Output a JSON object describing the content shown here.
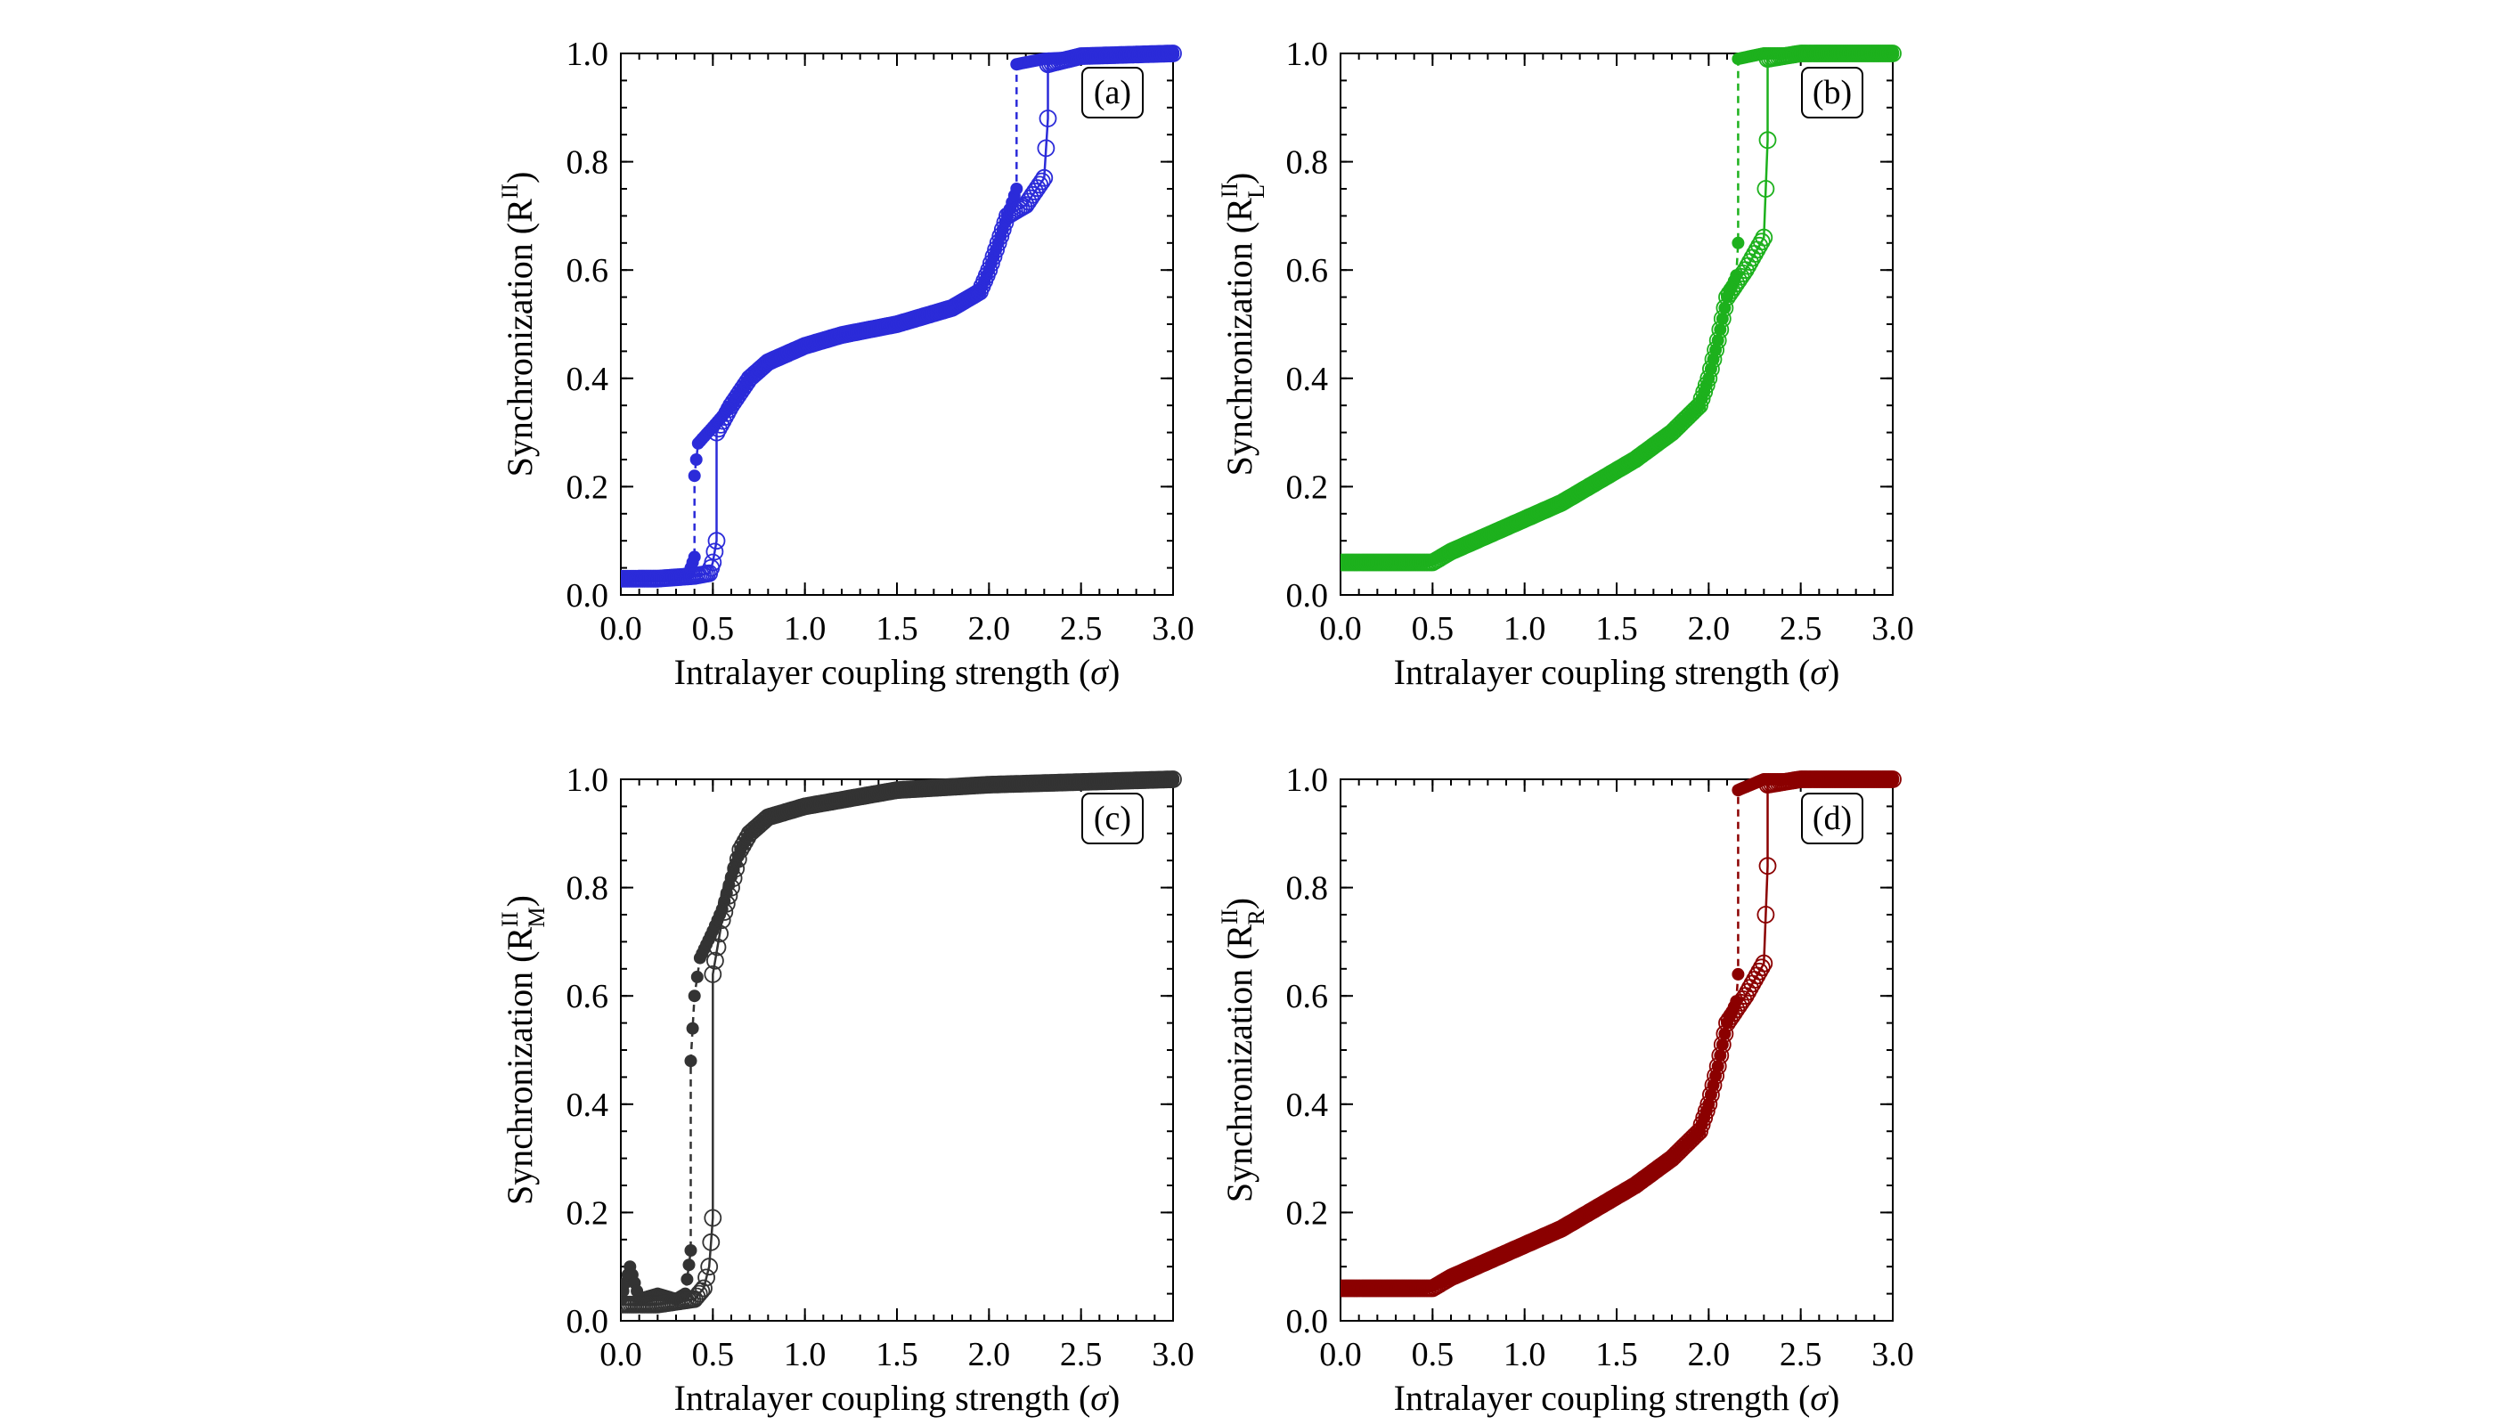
{
  "chart_data": [
    {
      "type": "scatter",
      "panel_label": "(a)",
      "color": "#2b2bd9",
      "xlabel": "Intralayer coupling strength (σ)",
      "ylabel_prefix": "Synchronization (R",
      "ylabel_sub": "",
      "ylabel_sup": "II",
      "ylabel_suffix": ")",
      "xlim": [
        0,
        3
      ],
      "ylim": [
        0,
        1
      ],
      "x_ticks": [
        "0.0",
        "0.5",
        "1.0",
        "1.5",
        "2.0",
        "2.5",
        "3.0"
      ],
      "y_ticks": [
        "0.0",
        "0.2",
        "0.4",
        "0.6",
        "0.8",
        "1.0"
      ],
      "series": [
        {
          "marker": "filled",
          "line": "dashed",
          "points": [
            [
              0,
              0.03
            ],
            [
              0.1,
              0.035
            ],
            [
              0.2,
              0.035
            ],
            [
              0.3,
              0.035
            ],
            [
              0.37,
              0.04
            ],
            [
              0.4,
              0.07
            ],
            [
              0.4,
              0.22
            ],
            [
              0.42,
              0.28
            ],
            [
              0.5,
              0.31
            ],
            [
              0.6,
              0.35
            ],
            [
              0.7,
              0.4
            ],
            [
              0.8,
              0.43
            ],
            [
              1.0,
              0.46
            ],
            [
              1.2,
              0.48
            ],
            [
              1.5,
              0.5
            ],
            [
              1.8,
              0.53
            ],
            [
              1.95,
              0.56
            ],
            [
              2.0,
              0.6
            ],
            [
              2.05,
              0.65
            ],
            [
              2.1,
              0.7
            ],
            [
              2.15,
              0.75
            ],
            [
              2.15,
              0.98
            ],
            [
              2.3,
              0.99
            ],
            [
              2.6,
              0.995
            ],
            [
              3.0,
              1.0
            ]
          ]
        },
        {
          "marker": "open",
          "line": "solid",
          "points": [
            [
              0,
              0.03
            ],
            [
              0.2,
              0.03
            ],
            [
              0.4,
              0.035
            ],
            [
              0.48,
              0.04
            ],
            [
              0.5,
              0.06
            ],
            [
              0.52,
              0.1
            ],
            [
              0.52,
              0.3
            ],
            [
              0.6,
              0.35
            ],
            [
              0.7,
              0.4
            ],
            [
              0.8,
              0.43
            ],
            [
              1.0,
              0.46
            ],
            [
              1.2,
              0.48
            ],
            [
              1.5,
              0.5
            ],
            [
              1.8,
              0.53
            ],
            [
              1.95,
              0.56
            ],
            [
              2.0,
              0.6
            ],
            [
              2.05,
              0.65
            ],
            [
              2.1,
              0.7
            ],
            [
              2.2,
              0.72
            ],
            [
              2.3,
              0.77
            ],
            [
              2.32,
              0.88
            ],
            [
              2.32,
              0.98
            ],
            [
              2.5,
              0.995
            ],
            [
              3.0,
              1.0
            ]
          ]
        }
      ]
    },
    {
      "type": "scatter",
      "panel_label": "(b)",
      "color": "#1db11d",
      "xlabel": "Intralayer coupling strength (σ)",
      "ylabel_prefix": "Synchronization (R",
      "ylabel_sub": "L",
      "ylabel_sup": "II",
      "ylabel_suffix": ")",
      "xlim": [
        0,
        3
      ],
      "ylim": [
        0,
        1
      ],
      "x_ticks": [
        "0.0",
        "0.5",
        "1.0",
        "1.5",
        "2.0",
        "2.5",
        "3.0"
      ],
      "y_ticks": [
        "0.0",
        "0.2",
        "0.4",
        "0.6",
        "0.8",
        "1.0"
      ],
      "series": [
        {
          "marker": "filled",
          "line": "dashed",
          "points": [
            [
              0,
              0.06
            ],
            [
              0.2,
              0.06
            ],
            [
              0.4,
              0.06
            ],
            [
              0.5,
              0.065
            ],
            [
              0.6,
              0.08
            ],
            [
              0.8,
              0.11
            ],
            [
              1.0,
              0.14
            ],
            [
              1.2,
              0.17
            ],
            [
              1.4,
              0.21
            ],
            [
              1.6,
              0.25
            ],
            [
              1.8,
              0.3
            ],
            [
              1.95,
              0.35
            ],
            [
              2.0,
              0.4
            ],
            [
              2.05,
              0.47
            ],
            [
              2.1,
              0.55
            ],
            [
              2.15,
              0.59
            ],
            [
              2.16,
              0.65
            ],
            [
              2.16,
              0.99
            ],
            [
              2.3,
              1.0
            ],
            [
              3.0,
              1.0
            ]
          ]
        },
        {
          "marker": "open",
          "line": "solid",
          "points": [
            [
              0,
              0.06
            ],
            [
              0.2,
              0.06
            ],
            [
              0.4,
              0.06
            ],
            [
              0.5,
              0.06
            ],
            [
              0.6,
              0.08
            ],
            [
              0.8,
              0.11
            ],
            [
              1.0,
              0.14
            ],
            [
              1.2,
              0.17
            ],
            [
              1.4,
              0.21
            ],
            [
              1.6,
              0.25
            ],
            [
              1.8,
              0.3
            ],
            [
              1.95,
              0.35
            ],
            [
              2.0,
              0.4
            ],
            [
              2.05,
              0.47
            ],
            [
              2.1,
              0.55
            ],
            [
              2.2,
              0.6
            ],
            [
              2.3,
              0.66
            ],
            [
              2.32,
              0.84
            ],
            [
              2.32,
              0.99
            ],
            [
              2.5,
              1.0
            ],
            [
              3.0,
              1.0
            ]
          ]
        }
      ]
    },
    {
      "type": "scatter",
      "panel_label": "(c)",
      "color": "#333333",
      "xlabel": "Intralayer coupling strength (σ)",
      "ylabel_prefix": "Synchronization (R",
      "ylabel_sub": "M",
      "ylabel_sup": "II",
      "ylabel_suffix": ")",
      "xlim": [
        0,
        3
      ],
      "ylim": [
        0,
        1
      ],
      "x_ticks": [
        "0.0",
        "0.5",
        "1.0",
        "1.5",
        "2.0",
        "2.5",
        "3.0"
      ],
      "y_ticks": [
        "0.0",
        "0.2",
        "0.4",
        "0.6",
        "0.8",
        "1.0"
      ],
      "series": [
        {
          "marker": "filled",
          "line": "dashed",
          "points": [
            [
              0,
              0.04
            ],
            [
              0.05,
              0.1
            ],
            [
              0.1,
              0.04
            ],
            [
              0.2,
              0.05
            ],
            [
              0.3,
              0.04
            ],
            [
              0.35,
              0.05
            ],
            [
              0.38,
              0.13
            ],
            [
              0.38,
              0.48
            ],
            [
              0.4,
              0.6
            ],
            [
              0.43,
              0.67
            ],
            [
              0.5,
              0.72
            ],
            [
              0.55,
              0.76
            ],
            [
              0.6,
              0.82
            ],
            [
              0.65,
              0.87
            ],
            [
              0.7,
              0.9
            ],
            [
              0.8,
              0.93
            ],
            [
              1.0,
              0.95
            ],
            [
              1.5,
              0.98
            ],
            [
              2.0,
              0.99
            ],
            [
              3.0,
              1.0
            ]
          ]
        },
        {
          "marker": "open",
          "line": "solid",
          "points": [
            [
              0,
              0.03
            ],
            [
              0.2,
              0.03
            ],
            [
              0.4,
              0.04
            ],
            [
              0.45,
              0.06
            ],
            [
              0.48,
              0.1
            ],
            [
              0.5,
              0.19
            ],
            [
              0.5,
              0.64
            ],
            [
              0.55,
              0.74
            ],
            [
              0.6,
              0.8
            ],
            [
              0.65,
              0.87
            ],
            [
              0.7,
              0.9
            ],
            [
              0.8,
              0.93
            ],
            [
              1.0,
              0.95
            ],
            [
              1.5,
              0.98
            ],
            [
              2.0,
              0.99
            ],
            [
              3.0,
              1.0
            ]
          ]
        }
      ]
    },
    {
      "type": "scatter",
      "panel_label": "(d)",
      "color": "#8b0000",
      "xlabel": "Intralayer coupling strength (σ)",
      "ylabel_prefix": "Synchronization (R",
      "ylabel_sub": "R",
      "ylabel_sup": "II",
      "ylabel_suffix": ")",
      "xlim": [
        0,
        3
      ],
      "ylim": [
        0,
        1
      ],
      "x_ticks": [
        "0.0",
        "0.5",
        "1.0",
        "1.5",
        "2.0",
        "2.5",
        "3.0"
      ],
      "y_ticks": [
        "0.0",
        "0.2",
        "0.4",
        "0.6",
        "0.8",
        "1.0"
      ],
      "series": [
        {
          "marker": "filled",
          "line": "dashed",
          "points": [
            [
              0,
              0.06
            ],
            [
              0.2,
              0.06
            ],
            [
              0.4,
              0.06
            ],
            [
              0.5,
              0.065
            ],
            [
              0.6,
              0.08
            ],
            [
              0.8,
              0.11
            ],
            [
              1.0,
              0.14
            ],
            [
              1.2,
              0.17
            ],
            [
              1.4,
              0.21
            ],
            [
              1.6,
              0.25
            ],
            [
              1.8,
              0.3
            ],
            [
              1.95,
              0.35
            ],
            [
              2.0,
              0.4
            ],
            [
              2.05,
              0.47
            ],
            [
              2.1,
              0.55
            ],
            [
              2.15,
              0.59
            ],
            [
              2.16,
              0.64
            ],
            [
              2.16,
              0.98
            ],
            [
              2.3,
              1.0
            ],
            [
              3.0,
              1.0
            ]
          ]
        },
        {
          "marker": "open",
          "line": "solid",
          "points": [
            [
              0,
              0.06
            ],
            [
              0.2,
              0.06
            ],
            [
              0.4,
              0.06
            ],
            [
              0.5,
              0.06
            ],
            [
              0.6,
              0.08
            ],
            [
              0.8,
              0.11
            ],
            [
              1.0,
              0.14
            ],
            [
              1.2,
              0.17
            ],
            [
              1.4,
              0.21
            ],
            [
              1.6,
              0.25
            ],
            [
              1.8,
              0.3
            ],
            [
              1.95,
              0.35
            ],
            [
              2.0,
              0.4
            ],
            [
              2.05,
              0.47
            ],
            [
              2.1,
              0.55
            ],
            [
              2.2,
              0.6
            ],
            [
              2.3,
              0.66
            ],
            [
              2.32,
              0.84
            ],
            [
              2.32,
              0.99
            ],
            [
              2.5,
              1.0
            ],
            [
              3.0,
              1.0
            ]
          ]
        }
      ]
    }
  ]
}
